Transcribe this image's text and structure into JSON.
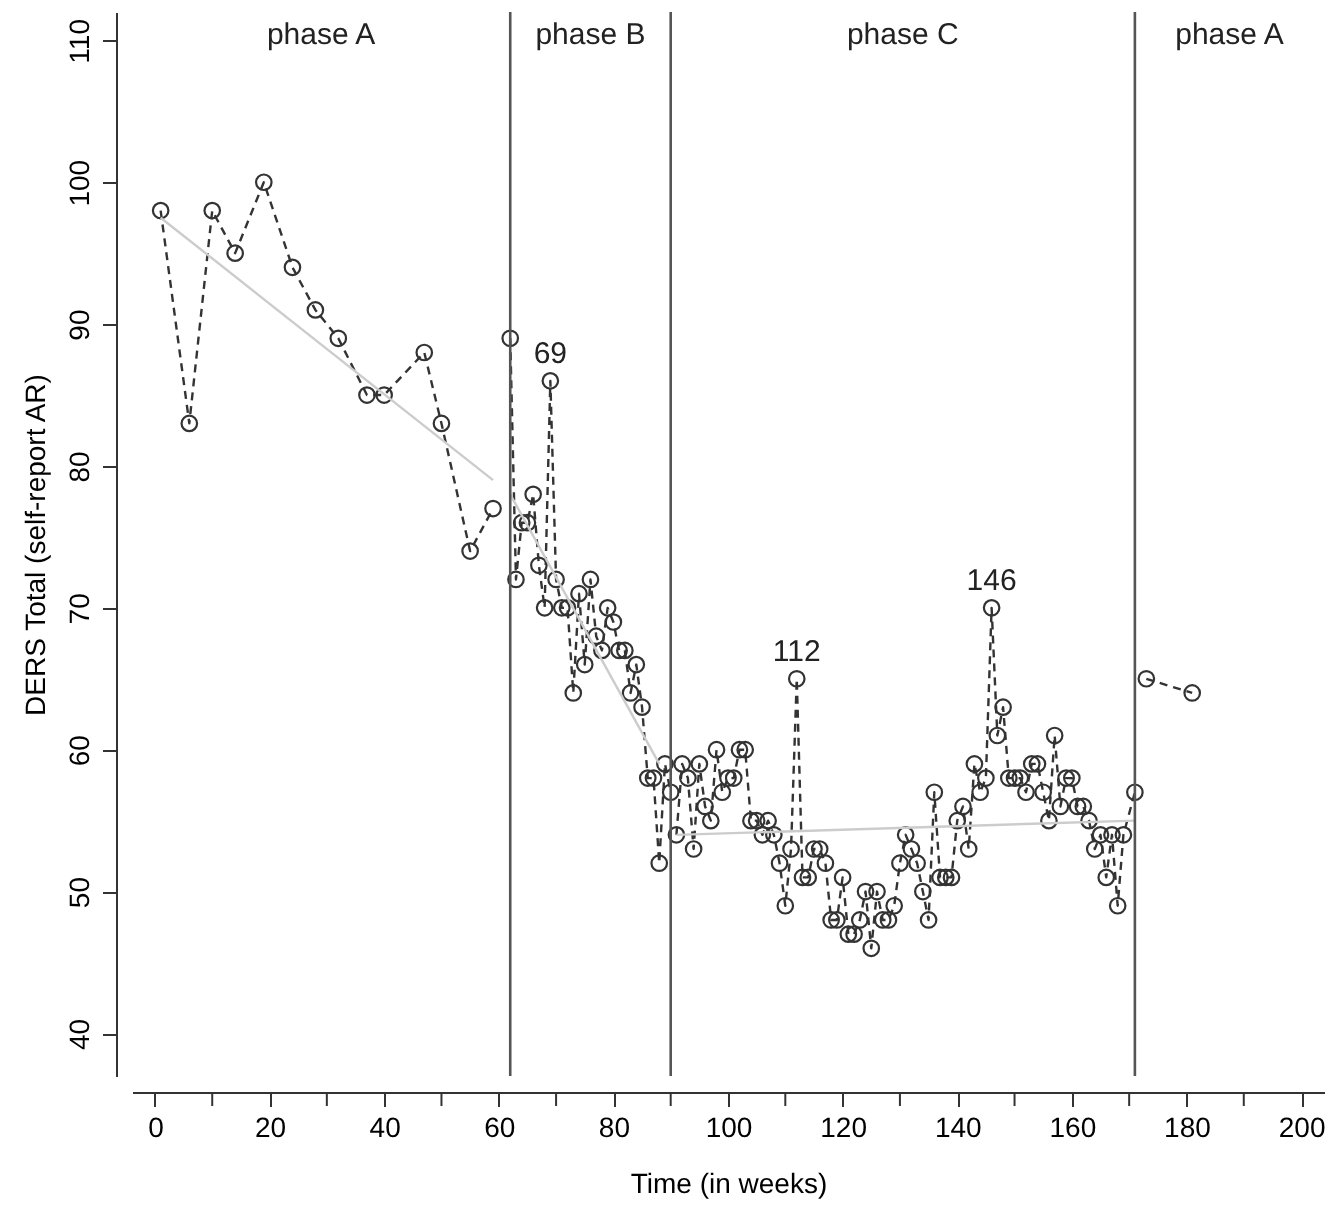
{
  "chart_data": {
    "type": "line",
    "xlabel": "Time (in weeks)",
    "ylabel": "DERS Total (self-report AR)",
    "xlim": [
      -4,
      204
    ],
    "ylim": [
      37,
      112
    ],
    "xticks": [
      0,
      {
        "value": 10,
        "label": null
      },
      20,
      {
        "value": 30,
        "label": null
      },
      40,
      {
        "value": 50,
        "label": null
      },
      60,
      {
        "value": 70,
        "label": null
      },
      80,
      {
        "value": 90,
        "label": null
      },
      100,
      {
        "value": 110,
        "label": null
      },
      120,
      {
        "value": 130,
        "label": null
      },
      140,
      {
        "value": 150,
        "label": null
      },
      160,
      {
        "value": 170,
        "label": null
      },
      180,
      {
        "value": 190,
        "label": null
      },
      200
    ],
    "yticks": [
      40,
      50,
      60,
      70,
      80,
      90,
      100,
      110
    ],
    "series": [
      {
        "color": "#333333",
        "marker": "circle",
        "line_style": "dashed",
        "x": [
          1,
          6,
          10,
          14,
          19,
          24,
          28,
          32,
          37,
          40,
          47,
          50,
          55,
          59
        ],
        "values": [
          98,
          83,
          98,
          95,
          100,
          94,
          91,
          89,
          85,
          85,
          88,
          83,
          74,
          77
        ]
      },
      {
        "color": "#333333",
        "marker": "circle",
        "line_style": "dashed",
        "x": [
          62,
          63,
          64,
          65,
          66,
          67,
          68,
          69,
          70,
          71,
          72,
          73,
          74,
          75,
          76,
          77,
          78,
          79,
          80,
          81,
          82,
          83,
          84,
          85,
          86,
          87,
          88,
          89,
          90
        ],
        "values": [
          89,
          72,
          76,
          76,
          78,
          73,
          70,
          86,
          72,
          70,
          70,
          64,
          71,
          66,
          72,
          68,
          67,
          70,
          69,
          67,
          67,
          64,
          66,
          63,
          58,
          58,
          52,
          59,
          57
        ]
      },
      {
        "color": "#333333",
        "marker": "circle",
        "line_style": "dashed",
        "x": [
          91,
          92,
          93,
          94,
          95,
          96,
          97,
          98,
          99,
          100,
          101,
          102,
          103,
          104,
          105,
          106,
          107,
          108,
          109,
          110,
          111,
          112,
          113,
          114,
          115,
          116,
          117,
          118,
          119,
          120,
          121,
          122,
          123,
          124,
          125,
          126,
          127,
          128,
          129,
          130,
          131,
          132,
          133,
          134,
          135,
          136,
          137,
          138,
          139,
          140,
          141,
          142,
          143,
          144,
          145,
          146,
          147,
          148,
          149,
          150,
          151,
          152,
          153,
          154,
          155,
          156,
          157,
          158,
          159,
          160,
          161,
          162,
          163,
          164,
          165,
          166,
          167,
          168,
          169,
          171
        ],
        "values": [
          54,
          59,
          58,
          53,
          59,
          56,
          55,
          60,
          57,
          58,
          58,
          60,
          60,
          55,
          55,
          54,
          55,
          54,
          52,
          49,
          53,
          65,
          51,
          51,
          53,
          53,
          52,
          48,
          48,
          51,
          47,
          47,
          48,
          50,
          46,
          50,
          48,
          48,
          49,
          52,
          54,
          53,
          52,
          50,
          48,
          57,
          51,
          51,
          51,
          55,
          56,
          53,
          59,
          57,
          58,
          70,
          61,
          63,
          58,
          58,
          58,
          57,
          59,
          59,
          57,
          55,
          61,
          56,
          58,
          58,
          56,
          56,
          55,
          53,
          54,
          51,
          54,
          49,
          54,
          57
        ]
      },
      {
        "color": "#333333",
        "marker": "circle",
        "line_style": "dashed",
        "x": [
          173,
          181
        ],
        "values": [
          65,
          64
        ]
      },
      {
        "type": "line",
        "color": "#cccccc",
        "marker": "none",
        "line_style": "solid",
        "x": [
          1,
          59
        ],
        "values": [
          97.5,
          79
        ]
      },
      {
        "type": "line",
        "color": "#cccccc",
        "marker": "none",
        "line_style": "solid",
        "x": [
          62,
          88
        ],
        "values": [
          78,
          59
        ]
      },
      {
        "type": "line",
        "color": "#cccccc",
        "marker": "none",
        "line_style": "solid",
        "x": [
          91,
          171
        ],
        "values": [
          54,
          55
        ]
      }
    ],
    "ref_lines": [
      {
        "axis": "x",
        "value": 62,
        "color": "#555555"
      },
      {
        "axis": "x",
        "value": 90,
        "color": "#555555"
      },
      {
        "axis": "x",
        "value": 171,
        "color": "#555555"
      }
    ],
    "annotations": [
      "phase A",
      "phase B",
      "phase C",
      "phase A",
      {
        "text": "69",
        "x": 69,
        "y": 86
      },
      {
        "text": "112",
        "x": 112,
        "y": 65
      },
      {
        "text": "146",
        "x": 146,
        "y": 70
      }
    ],
    "grid": false
  }
}
